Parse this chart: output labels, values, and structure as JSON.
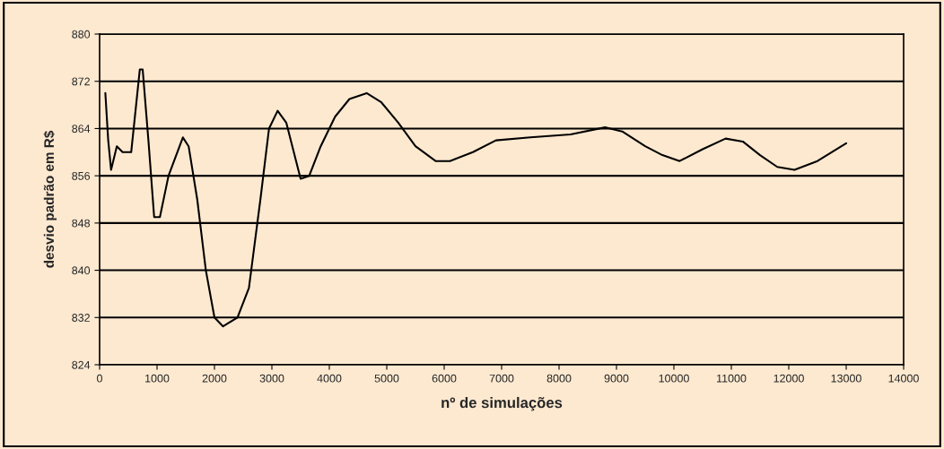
{
  "chart_data": {
    "type": "line",
    "xlabel": "nº de simulações",
    "ylabel": "desvio padrão em R$",
    "x": [
      100,
      150,
      200,
      300,
      400,
      550,
      700,
      750,
      850,
      950,
      1050,
      1200,
      1450,
      1550,
      1700,
      1850,
      2000,
      2150,
      2400,
      2600,
      2800,
      2950,
      3100,
      3250,
      3500,
      3650,
      3850,
      4100,
      4350,
      4650,
      4900,
      5200,
      5500,
      5850,
      6100,
      6500,
      6900,
      7500,
      8200,
      8800,
      9100,
      9500,
      9800,
      10100,
      10500,
      10900,
      11200,
      11500,
      11800,
      12100,
      12500,
      13000
    ],
    "series": [
      {
        "color": "#000000",
        "values": [
          870,
          862,
          857,
          861,
          860,
          860,
          874,
          874,
          862,
          849,
          849,
          856,
          862.5,
          861,
          852,
          840,
          832,
          830.5,
          832,
          837,
          852,
          864,
          867,
          865,
          855.5,
          856,
          861,
          866,
          869,
          870,
          868.5,
          865,
          861,
          858.5,
          858.5,
          860,
          862,
          862.5,
          863,
          864.2,
          863.5,
          861,
          859.5,
          858.5,
          860.5,
          862.3,
          861.8,
          859.5,
          857.5,
          857,
          858.5,
          861.5
        ]
      }
    ],
    "xlim": [
      0,
      14000
    ],
    "xticks": [
      0,
      1000,
      2000,
      3000,
      4000,
      5000,
      6000,
      7000,
      8000,
      9000,
      10000,
      11000,
      12000,
      13000,
      14000
    ],
    "ylim": [
      824,
      880
    ],
    "yticks": [
      824,
      832,
      840,
      848,
      856,
      864,
      872,
      880
    ],
    "grid": "y",
    "marker": "none",
    "line_style": "solid"
  }
}
